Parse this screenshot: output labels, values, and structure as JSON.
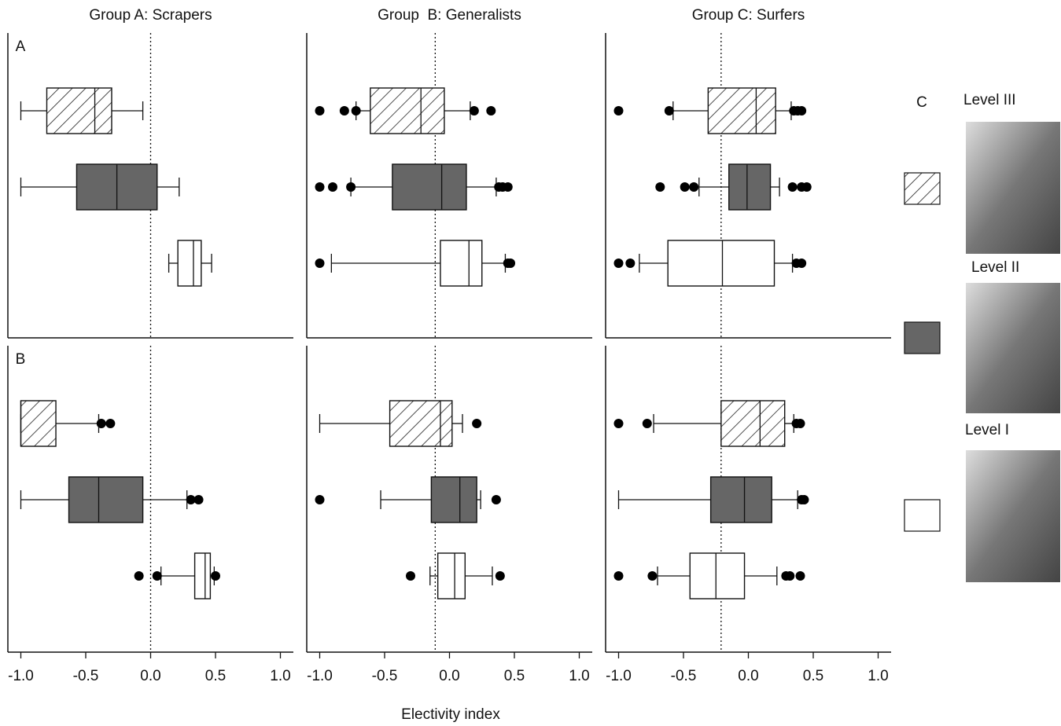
{
  "chart_data": [
    {
      "type": "box",
      "title": "Group A: Scrapers",
      "label": "A",
      "xlim": [
        -1.1,
        1.1
      ],
      "refline": 0,
      "boxes": [
        {
          "whislo": -1.0,
          "q1": -0.8,
          "med": -0.43,
          "q3": -0.3,
          "whishi": -0.06,
          "fliers": []
        },
        {
          "whislo": -1.0,
          "q1": -0.57,
          "med": -0.26,
          "q3": 0.05,
          "whishi": 0.22,
          "fliers": []
        },
        {
          "whislo": 0.14,
          "q1": 0.21,
          "med": 0.33,
          "q3": 0.39,
          "whishi": 0.47,
          "fliers": []
        }
      ]
    },
    {
      "type": "box",
      "title": "Group  B: Generalists",
      "xlim": [
        -1.1,
        1.1
      ],
      "refline": -0.11,
      "boxes": [
        {
          "whislo": -0.72,
          "q1": -0.61,
          "med": -0.22,
          "q3": -0.04,
          "whishi": 0.16,
          "fliers": [
            -1.0,
            -0.81,
            -0.72,
            0.19,
            0.32
          ]
        },
        {
          "whislo": -0.76,
          "q1": -0.44,
          "med": -0.06,
          "q3": 0.13,
          "whishi": 0.36,
          "fliers": [
            -1.0,
            -0.9,
            -0.76,
            0.38,
            0.41,
            0.45
          ]
        },
        {
          "whislo": -0.91,
          "q1": -0.07,
          "med": 0.15,
          "q3": 0.25,
          "whishi": 0.43,
          "fliers": [
            -1.0,
            0.45,
            0.47
          ]
        }
      ]
    },
    {
      "type": "box",
      "title": "Group C: Surfers",
      "xlim": [
        -1.1,
        1.1
      ],
      "refline": -0.21,
      "boxes": [
        {
          "whislo": -0.58,
          "q1": -0.31,
          "med": 0.06,
          "q3": 0.21,
          "whishi": 0.33,
          "fliers": [
            -1.0,
            -0.61,
            0.35,
            0.38,
            0.41
          ]
        },
        {
          "whislo": -0.38,
          "q1": -0.15,
          "med": -0.01,
          "q3": 0.17,
          "whishi": 0.24,
          "fliers": [
            -0.68,
            -0.49,
            -0.42,
            0.34,
            0.41,
            0.45
          ]
        },
        {
          "whislo": -0.84,
          "q1": -0.62,
          "med": -0.2,
          "q3": 0.2,
          "whishi": 0.34,
          "fliers": [
            -1.0,
            -0.91,
            0.37,
            0.41
          ]
        }
      ]
    },
    {
      "type": "box",
      "label": "B",
      "xlim": [
        -1.1,
        1.1
      ],
      "refline": 0,
      "xticks": [
        {
          "value": -1,
          "label": "-1.0"
        },
        {
          "value": -0.5,
          "label": "-0.5"
        },
        {
          "value": 0,
          "label": "0.0"
        },
        {
          "value": 0.5,
          "label": "0.5"
        },
        {
          "value": 1,
          "label": "1.0"
        }
      ],
      "boxes": [
        {
          "whislo": -1.0,
          "q1": -1.0,
          "med": -1.0,
          "q3": -0.73,
          "whishi": -0.4,
          "fliers": [
            -0.38,
            -0.31
          ]
        },
        {
          "whislo": -1.0,
          "q1": -0.63,
          "med": -0.4,
          "q3": -0.06,
          "whishi": 0.28,
          "fliers": [
            0.31,
            0.37
          ]
        },
        {
          "whislo": 0.08,
          "q1": 0.34,
          "med": 0.42,
          "q3": 0.46,
          "whishi": 0.49,
          "fliers": [
            -0.09,
            0.05,
            0.5
          ]
        }
      ]
    },
    {
      "type": "box",
      "xlim": [
        -1.1,
        1.1
      ],
      "refline": -0.11,
      "xticks": [
        {
          "value": -1,
          "label": "-1.0"
        },
        {
          "value": -0.5,
          "label": "-0.5"
        },
        {
          "value": 0,
          "label": "0.0"
        },
        {
          "value": 0.5,
          "label": "0.5"
        },
        {
          "value": 1,
          "label": "1.0"
        }
      ],
      "boxes": [
        {
          "whislo": -1.0,
          "q1": -0.46,
          "med": -0.07,
          "q3": 0.02,
          "whishi": 0.1,
          "fliers": [
            0.21
          ]
        },
        {
          "whislo": -0.53,
          "q1": -0.14,
          "med": 0.08,
          "q3": 0.21,
          "whishi": 0.24,
          "fliers": [
            -1.0,
            0.36
          ]
        },
        {
          "whislo": -0.15,
          "q1": -0.09,
          "med": 0.04,
          "q3": 0.12,
          "whishi": 0.33,
          "fliers": [
            -0.3,
            0.39
          ]
        }
      ]
    },
    {
      "type": "box",
      "xlim": [
        -1.1,
        1.1
      ],
      "refline": -0.21,
      "xticks": [
        {
          "value": -1,
          "label": "-1.0"
        },
        {
          "value": -0.5,
          "label": "-0.5"
        },
        {
          "value": 0,
          "label": "0.0"
        },
        {
          "value": 0.5,
          "label": "0.5"
        },
        {
          "value": 1,
          "label": "1.0"
        }
      ],
      "boxes": [
        {
          "whislo": -0.73,
          "q1": -0.21,
          "med": 0.09,
          "q3": 0.28,
          "whishi": 0.35,
          "fliers": [
            -1.0,
            -0.78,
            0.37,
            0.4
          ]
        },
        {
          "whislo": -1.0,
          "q1": -0.29,
          "med": -0.03,
          "q3": 0.18,
          "whishi": 0.38,
          "fliers": [
            0.41,
            0.43
          ]
        },
        {
          "whislo": -0.7,
          "q1": -0.45,
          "med": -0.25,
          "q3": -0.03,
          "whishi": 0.22,
          "fliers": [
            -1.0,
            -0.74,
            0.29,
            0.32,
            0.4
          ]
        }
      ]
    }
  ],
  "xlabel": "Electivity index",
  "legend": {
    "title": "C",
    "levels": [
      {
        "name": "Level III",
        "fill": "hatch"
      },
      {
        "name": "Level II",
        "fill": "#666666"
      },
      {
        "name": "Level I",
        "fill": "#ffffff"
      }
    ]
  }
}
